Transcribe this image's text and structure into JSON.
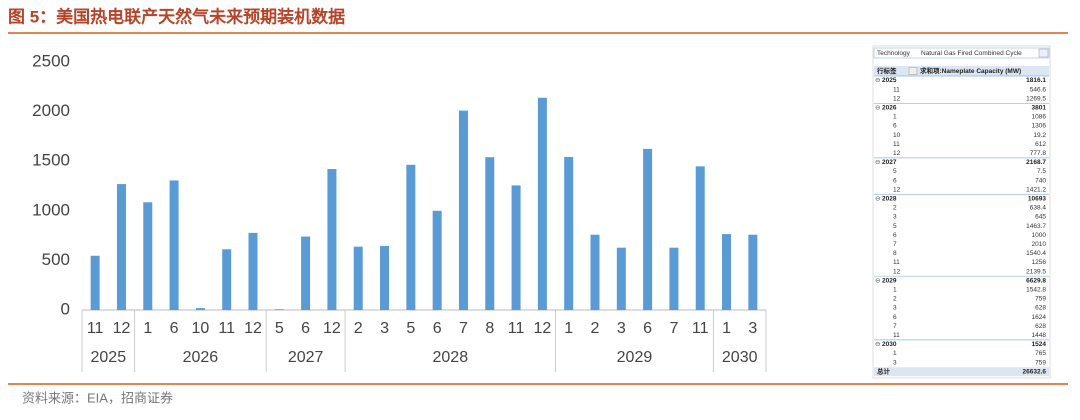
{
  "title": "图 5：美国热电联产天然气未来预期装机数据",
  "source": "资料来源：EIA，招商证券",
  "chart_data": {
    "type": "bar",
    "color": "#5b9bd5",
    "ylim": [
      0,
      2500
    ],
    "yticks": [
      0,
      500,
      1000,
      1500,
      2000,
      2500
    ],
    "grid": false,
    "groups": [
      {
        "name": "2025",
        "categories": [
          "11",
          "12"
        ],
        "values": [
          546.6,
          1269.5
        ],
        "total": 1816.1
      },
      {
        "name": "2026",
        "categories": [
          "1",
          "6",
          "10",
          "11",
          "12"
        ],
        "values": [
          1086,
          1306,
          19.2,
          612,
          777.8
        ],
        "total": 3801
      },
      {
        "name": "2027",
        "categories": [
          "5",
          "6",
          "12"
        ],
        "values": [
          7.5,
          740,
          1421.2
        ],
        "total": 2168.7
      },
      {
        "name": "2028",
        "categories": [
          "2",
          "3",
          "5",
          "6",
          "7",
          "8",
          "11",
          "12"
        ],
        "values": [
          638.4,
          645,
          1463.7,
          1000,
          2010,
          1540.4,
          1256,
          2139.5
        ],
        "total": 10693
      },
      {
        "name": "2029",
        "categories": [
          "1",
          "2",
          "3",
          "6",
          "7",
          "11"
        ],
        "values": [
          1542.8,
          759,
          628,
          1624,
          628,
          1448
        ],
        "total": 6629.8
      },
      {
        "name": "2030",
        "categories": [
          "1",
          "3"
        ],
        "values": [
          765,
          759
        ],
        "total": 1524
      }
    ]
  },
  "pivot_table": {
    "filter_label": "Technology",
    "filter_value": "Natural Gas Fired Combined Cycle",
    "row_header": "行标签",
    "value_header": "求和项:Nameplate Capacity (MW)",
    "grand_total_label": "总计",
    "grand_total": 26632.6
  }
}
